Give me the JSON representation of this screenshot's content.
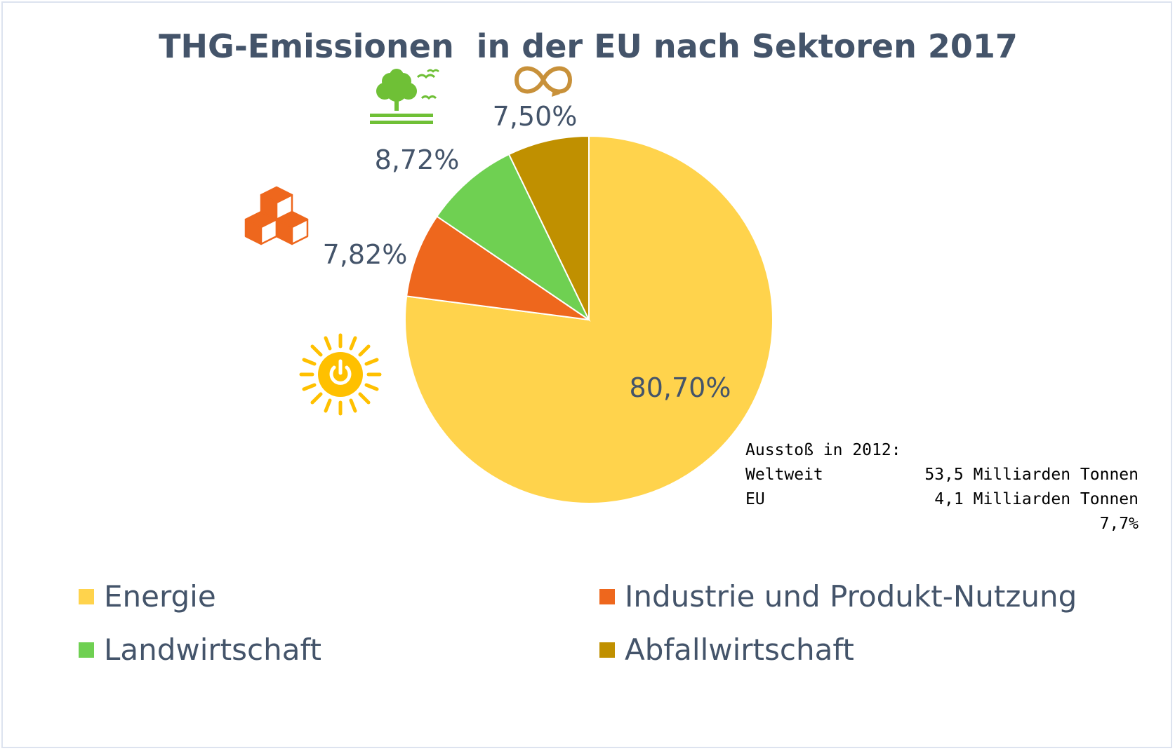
{
  "chart_data": {
    "type": "pie",
    "title": "THG-Emissionen  in der EU nach Sektoren 2017",
    "slices": [
      {
        "name": "Energie",
        "value": 80.7,
        "label": "80,70%",
        "color": "#ffd34c",
        "icon": "sun-power-icon"
      },
      {
        "name": "Industrie und Produkt-Nutzung",
        "value": 7.82,
        "label": "7,82%",
        "color": "#ee671d",
        "icon": "cubes-icon"
      },
      {
        "name": "Landwirtschaft",
        "value": 8.72,
        "label": "8,72%",
        "color": "#6fd052",
        "icon": "tree-birds-icon"
      },
      {
        "name": "Abfallwirtschaft",
        "value": 7.5,
        "label": "7,50%",
        "color": "#c09000",
        "icon": "infinity-recycle-icon"
      }
    ],
    "legend_placement": "bottom",
    "label_color": "#44546a"
  },
  "note": {
    "heading": "Ausstoß in 2012:",
    "rows": [
      {
        "label": "Weltweit",
        "value": "53,5 Milliarden Tonnen"
      },
      {
        "label": "EU",
        "value": "4,1 Milliarden Tonnen"
      },
      {
        "label": "",
        "value": "7,7%"
      }
    ]
  }
}
